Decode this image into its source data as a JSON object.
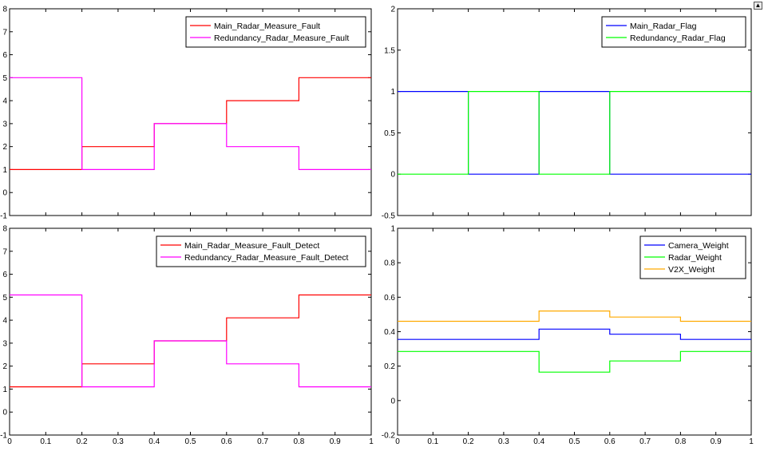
{
  "colors": {
    "red": "#ff0000",
    "magenta": "#ff00ff",
    "blue": "#0000ff",
    "green": "#00ff00",
    "orange": "#ffaa00",
    "axes": "#000000",
    "background": "#ffffff"
  },
  "dock_icon": "dock-arrow-icon",
  "chart_data": [
    {
      "type": "line",
      "step": true,
      "xlim": [
        0,
        1
      ],
      "ylim": [
        -1,
        8
      ],
      "xticks": [],
      "yticks": [
        -1,
        0,
        1,
        2,
        3,
        4,
        5,
        6,
        7,
        8
      ],
      "legend_position": "top-right",
      "series": [
        {
          "name": "Main_Radar_Measure_Fault",
          "color": "#ff0000",
          "x": [
            0,
            0.2,
            0.2,
            0.4,
            0.4,
            0.6,
            0.6,
            0.8,
            0.8,
            1
          ],
          "y": [
            1,
            1,
            2,
            2,
            3,
            3,
            4,
            4,
            5,
            5
          ]
        },
        {
          "name": "Redundancy_Radar_Measure_Fault",
          "color": "#ff00ff",
          "x": [
            0,
            0.2,
            0.2,
            0.4,
            0.4,
            0.6,
            0.6,
            0.8,
            0.8,
            1
          ],
          "y": [
            5,
            5,
            1,
            1,
            3,
            3,
            2,
            2,
            1,
            1
          ]
        }
      ]
    },
    {
      "type": "line",
      "step": true,
      "xlim": [
        0,
        1
      ],
      "ylim": [
        -0.5,
        2
      ],
      "xticks": [],
      "yticks": [
        -0.5,
        0,
        0.5,
        1,
        1.5,
        2
      ],
      "legend_position": "top-right",
      "series": [
        {
          "name": "Main_Radar_Flag",
          "color": "#0000ff",
          "x": [
            0,
            0.2,
            0.2,
            0.4,
            0.4,
            0.6,
            0.6,
            1
          ],
          "y": [
            1,
            1,
            0,
            0,
            1,
            1,
            0,
            0
          ]
        },
        {
          "name": "Redundancy_Radar_Flag",
          "color": "#00ff00",
          "x": [
            0,
            0.2,
            0.2,
            0.4,
            0.4,
            0.6,
            0.6,
            1
          ],
          "y": [
            0,
            0,
            1,
            1,
            0,
            0,
            1,
            1
          ]
        }
      ]
    },
    {
      "type": "line",
      "step": true,
      "xlim": [
        0,
        1
      ],
      "ylim": [
        -1,
        8
      ],
      "xticks": [
        0,
        0.1,
        0.2,
        0.3,
        0.4,
        0.5,
        0.6,
        0.7,
        0.8,
        0.9,
        1
      ],
      "yticks": [
        -1,
        0,
        1,
        2,
        3,
        4,
        5,
        6,
        7,
        8
      ],
      "legend_position": "top-right",
      "series": [
        {
          "name": "Main_Radar_Measure_Fault_Detect",
          "color": "#ff0000",
          "x": [
            0,
            0.2,
            0.2,
            0.4,
            0.4,
            0.6,
            0.6,
            0.8,
            0.8,
            1
          ],
          "y": [
            1.1,
            1.1,
            2.1,
            2.1,
            3.1,
            3.1,
            4.1,
            4.1,
            5.1,
            5.1
          ]
        },
        {
          "name": "Redundancy_Radar_Measure_Fault_Detect",
          "color": "#ff00ff",
          "x": [
            0,
            0.2,
            0.2,
            0.4,
            0.4,
            0.6,
            0.6,
            0.8,
            0.8,
            1
          ],
          "y": [
            5.1,
            5.1,
            1.1,
            1.1,
            3.1,
            3.1,
            2.1,
            2.1,
            1.1,
            1.1
          ]
        }
      ]
    },
    {
      "type": "line",
      "step": true,
      "xlim": [
        0,
        1
      ],
      "ylim": [
        -0.2,
        1
      ],
      "xticks": [
        0,
        0.1,
        0.2,
        0.3,
        0.4,
        0.5,
        0.6,
        0.7,
        0.8,
        0.9,
        1
      ],
      "yticks": [
        -0.2,
        0,
        0.2,
        0.4,
        0.6,
        0.8,
        1
      ],
      "legend_position": "top-right",
      "series": [
        {
          "name": "Camera_Weight",
          "color": "#0000ff",
          "x": [
            0,
            0.4,
            0.4,
            0.6,
            0.6,
            0.8,
            0.8,
            1
          ],
          "y": [
            0.355,
            0.355,
            0.415,
            0.415,
            0.385,
            0.385,
            0.355,
            0.355
          ]
        },
        {
          "name": "Radar_Weight",
          "color": "#00ff00",
          "x": [
            0,
            0.4,
            0.4,
            0.6,
            0.6,
            0.8,
            0.8,
            1
          ],
          "y": [
            0.285,
            0.285,
            0.165,
            0.165,
            0.23,
            0.23,
            0.285,
            0.285
          ]
        },
        {
          "name": "V2X_Weight",
          "color": "#ffaa00",
          "x": [
            0,
            0.4,
            0.4,
            0.6,
            0.6,
            0.8,
            0.8,
            1
          ],
          "y": [
            0.46,
            0.46,
            0.52,
            0.52,
            0.485,
            0.485,
            0.46,
            0.46
          ]
        }
      ]
    }
  ]
}
